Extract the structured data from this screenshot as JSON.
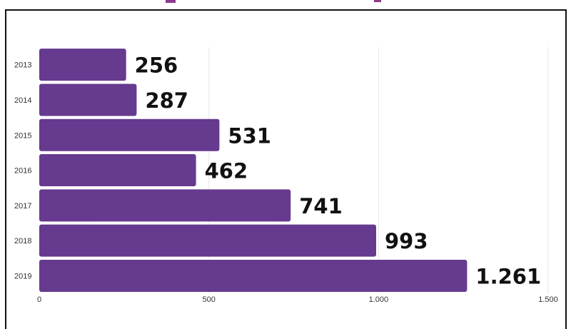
{
  "colors": {
    "bar": "#663a8f",
    "accent": "#8a3a8e",
    "grid": "#e6e6e6",
    "frame": "#111111"
  },
  "chart_data": {
    "type": "bar",
    "orientation": "horizontal",
    "categories": [
      "2013",
      "2014",
      "2015",
      "2016",
      "2017",
      "2018",
      "2019"
    ],
    "values": [
      256,
      287,
      531,
      462,
      741,
      993,
      1261
    ],
    "value_labels": [
      "256",
      "287",
      "531",
      "462",
      "741",
      "993",
      "1.261"
    ],
    "xlim": [
      0,
      1500
    ],
    "xticks": [
      0,
      500,
      1000,
      1500
    ],
    "xtick_labels": [
      "0",
      "500",
      "1.000",
      "1.500"
    ],
    "grid": true,
    "title": "",
    "xlabel": "",
    "ylabel": ""
  }
}
